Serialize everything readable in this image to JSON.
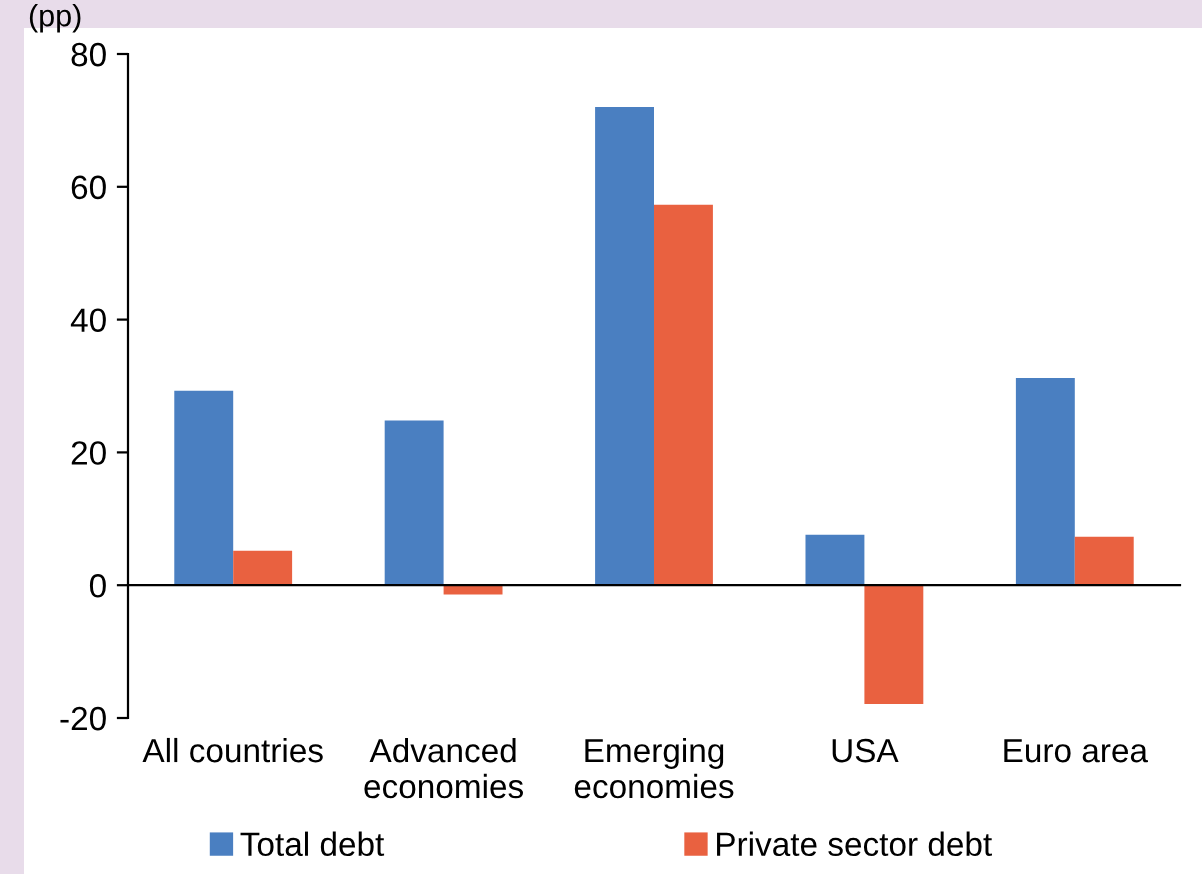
{
  "chart_data": {
    "type": "bar",
    "ylabel": "(pp)",
    "categories": [
      "All countries",
      "Advanced\neconomies",
      "Emerging\neconomies",
      "USA",
      "Euro area"
    ],
    "series": [
      {
        "name": "Total debt",
        "color": "#4a7fc1",
        "values": [
          29.3,
          24.8,
          72.0,
          7.6,
          31.2
        ]
      },
      {
        "name": "Private sector debt",
        "color": "#e96140",
        "values": [
          5.2,
          -1.4,
          57.3,
          -17.9,
          7.3
        ]
      }
    ],
    "ylim": [
      -20,
      80
    ],
    "yticks": [
      -20,
      0,
      20,
      40,
      60,
      80
    ],
    "legend": "bottom"
  }
}
